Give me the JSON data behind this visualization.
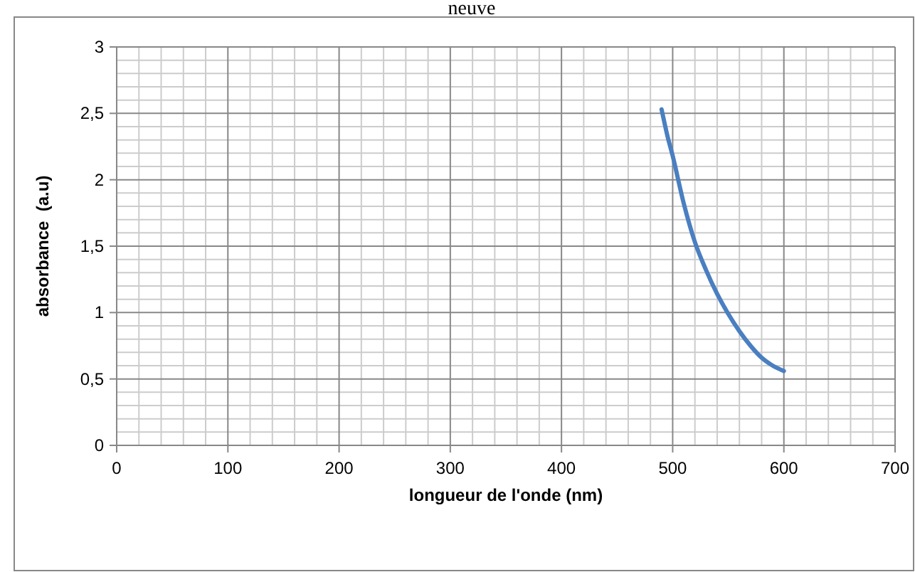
{
  "chart_data": {
    "type": "line",
    "title": "neuve",
    "xlabel": "longueur de l'onde (nm)",
    "ylabel": "absorbance  (a.u)",
    "series": [
      {
        "color": "#4a7fc1",
        "x": [
          490,
          495,
          500,
          510,
          520,
          530,
          540,
          550,
          560,
          570,
          580,
          590,
          600
        ],
        "values": [
          2.53,
          2.34,
          2.18,
          1.82,
          1.53,
          1.32,
          1.14,
          0.99,
          0.86,
          0.75,
          0.66,
          0.6,
          0.56
        ]
      }
    ],
    "xlim": [
      0,
      700
    ],
    "xticks": [
      0,
      100,
      200,
      300,
      400,
      500,
      600,
      700
    ],
    "ylim": [
      0,
      3
    ],
    "yticks": [
      {
        "value": 0,
        "label": "0"
      },
      {
        "value": 0.5,
        "label": "0,5"
      },
      {
        "value": 1,
        "label": "1"
      },
      {
        "value": 1.5,
        "label": "1,5"
      },
      {
        "value": 2,
        "label": "2"
      },
      {
        "value": 2.5,
        "label": "2,5"
      },
      {
        "value": 3,
        "label": "3"
      }
    ],
    "grid": true,
    "marker": "none",
    "line_style": "solid"
  }
}
